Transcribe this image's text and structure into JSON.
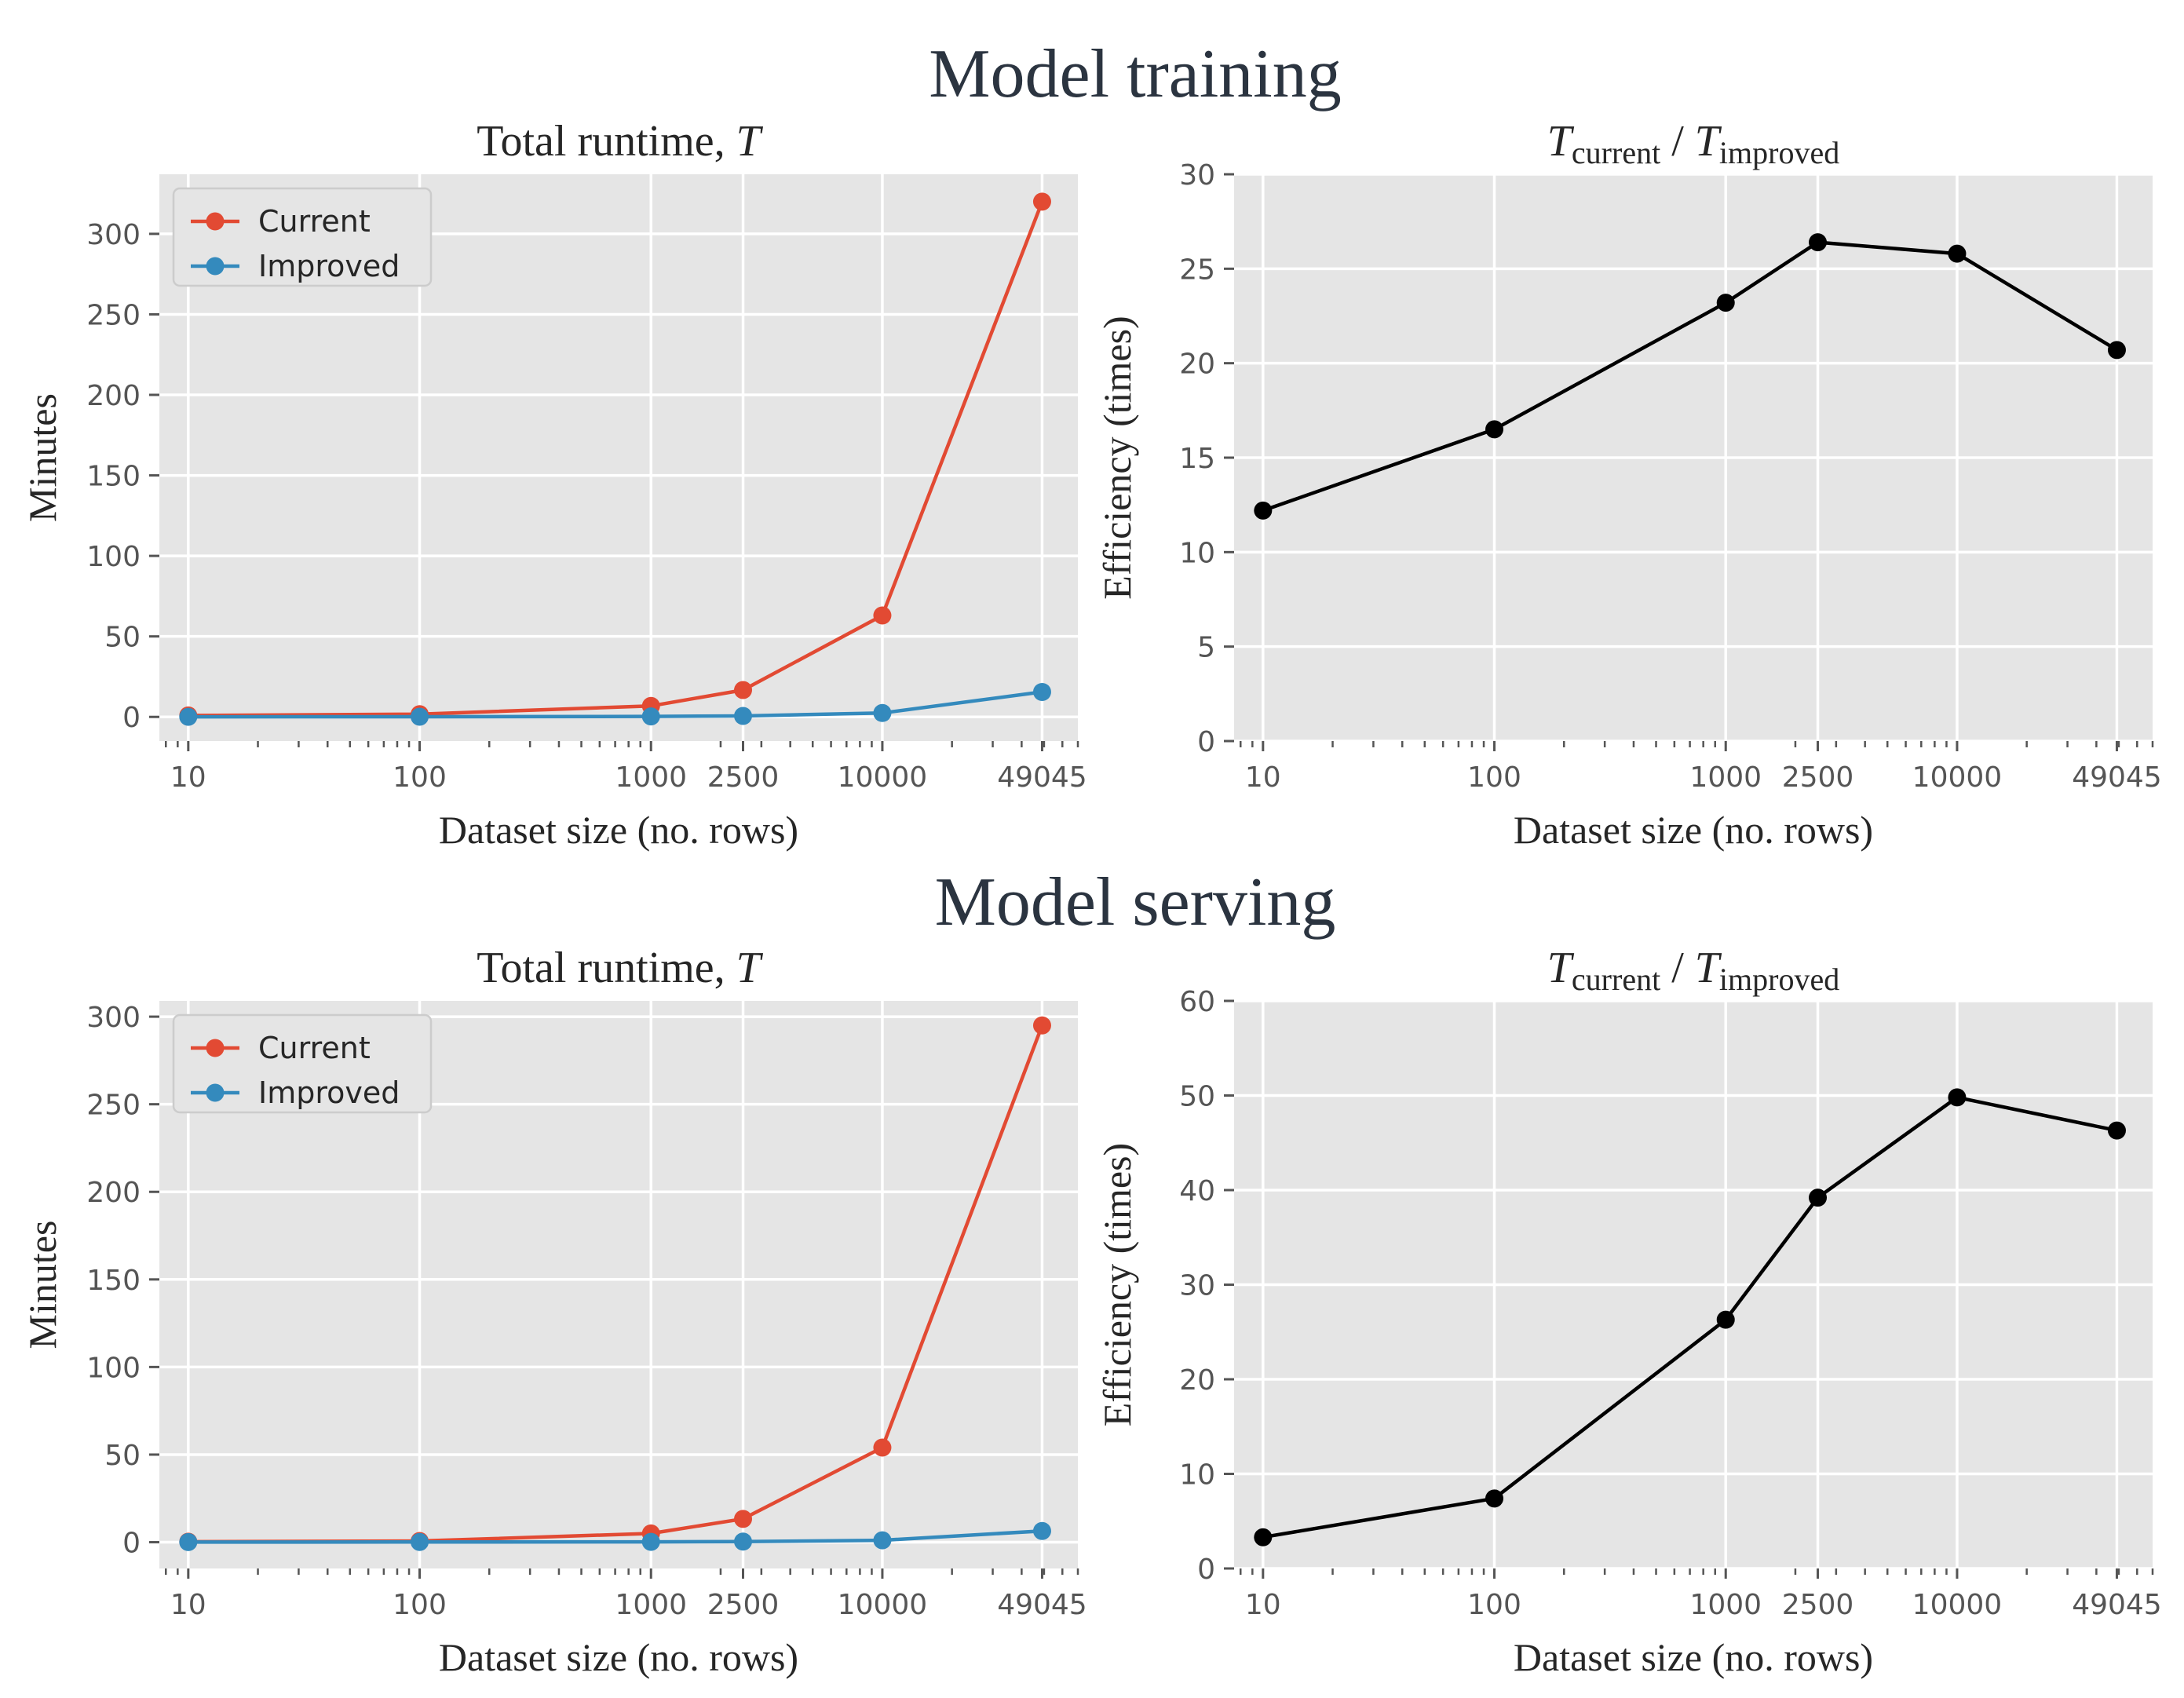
{
  "figure": {
    "sections": [
      {
        "title": "Model training"
      },
      {
        "title": "Model serving"
      }
    ]
  },
  "colors": {
    "current": "#E24A33",
    "improved": "#348ABD",
    "ratio": "#000000",
    "axes_bg": "#E5E5E5",
    "grid": "#FFFFFF"
  },
  "chart_data": [
    {
      "type": "line",
      "section": "Model training",
      "title_prefix": "Total runtime, ",
      "title_var": "T",
      "xlabel": "Dataset size (no. rows)",
      "ylabel": "Minutes",
      "xscale": "log",
      "xticks": [
        10,
        100,
        1000,
        2500,
        10000,
        49045
      ],
      "xtick_labels": [
        "10",
        "100",
        "1000",
        "2500",
        "10000",
        "49045"
      ],
      "x": [
        10,
        100,
        1000,
        2500,
        10000,
        49045
      ],
      "series": [
        {
          "name": "Current",
          "color_key": "current",
          "values": [
            0.9,
            1.7,
            6.8,
            16.7,
            63,
            320
          ]
        },
        {
          "name": "Improved",
          "color_key": "improved",
          "values": [
            0.07,
            0.1,
            0.3,
            0.6,
            2.4,
            15.5
          ]
        }
      ],
      "ylim": [
        -15,
        337
      ],
      "yticks": [
        0,
        50,
        100,
        150,
        200,
        250,
        300
      ],
      "ytick_labels": [
        "0",
        "50",
        "100",
        "150",
        "200",
        "250",
        "300"
      ],
      "legend": "upper-left",
      "grid": true
    },
    {
      "type": "line",
      "section": "Model training",
      "title_ratio": {
        "num_var": "T",
        "num_sub": "current",
        "sep": " / ",
        "den_var": "T",
        "den_sub": "improved"
      },
      "xlabel": "Dataset size (no. rows)",
      "ylabel": "Efficiency (times)",
      "xscale": "log",
      "xticks": [
        10,
        100,
        1000,
        2500,
        10000,
        49045
      ],
      "xtick_labels": [
        "10",
        "100",
        "1000",
        "2500",
        "10000",
        "49045"
      ],
      "x": [
        10,
        100,
        1000,
        2500,
        10000,
        49045
      ],
      "series": [
        {
          "color_key": "ratio",
          "values": [
            12.2,
            16.5,
            23.2,
            26.4,
            25.8,
            20.7
          ]
        }
      ],
      "ylim": [
        0,
        30
      ],
      "yticks": [
        0,
        5,
        10,
        15,
        20,
        25,
        30
      ],
      "ytick_labels": [
        "0",
        "5",
        "10",
        "15",
        "20",
        "25",
        "30"
      ],
      "grid": true
    },
    {
      "type": "line",
      "section": "Model serving",
      "title_prefix": "Total runtime, ",
      "title_var": "T",
      "xlabel": "Dataset size (no. rows)",
      "ylabel": "Minutes",
      "xscale": "log",
      "xticks": [
        10,
        100,
        1000,
        2500,
        10000,
        49045
      ],
      "xtick_labels": [
        "10",
        "100",
        "1000",
        "2500",
        "10000",
        "49045"
      ],
      "x": [
        10,
        100,
        1000,
        2500,
        10000,
        49045
      ],
      "series": [
        {
          "name": "Current",
          "color_key": "current",
          "values": [
            0.3,
            0.7,
            5,
            13.3,
            54,
            295
          ]
        },
        {
          "name": "Improved",
          "color_key": "improved",
          "values": [
            0.05,
            0.1,
            0.2,
            0.35,
            1.1,
            6.4
          ]
        }
      ],
      "ylim": [
        -15,
        309
      ],
      "yticks": [
        0,
        50,
        100,
        150,
        200,
        250,
        300
      ],
      "ytick_labels": [
        "0",
        "50",
        "100",
        "150",
        "200",
        "250",
        "300"
      ],
      "legend": "upper-left",
      "grid": true
    },
    {
      "type": "line",
      "section": "Model serving",
      "title_ratio": {
        "num_var": "T",
        "num_sub": "current",
        "sep": " / ",
        "den_var": "T",
        "den_sub": "improved"
      },
      "xlabel": "Dataset size (no. rows)",
      "ylabel": "Efficiency (times)",
      "xscale": "log",
      "xticks": [
        10,
        100,
        1000,
        2500,
        10000,
        49045
      ],
      "xtick_labels": [
        "10",
        "100",
        "1000",
        "2500",
        "10000",
        "49045"
      ],
      "x": [
        10,
        100,
        1000,
        2500,
        10000,
        49045
      ],
      "series": [
        {
          "color_key": "ratio",
          "values": [
            3.3,
            7.4,
            26.3,
            39.2,
            49.8,
            46.3
          ]
        }
      ],
      "ylim": [
        0,
        60
      ],
      "yticks": [
        0,
        10,
        20,
        30,
        40,
        50,
        60
      ],
      "ytick_labels": [
        "0",
        "10",
        "20",
        "30",
        "40",
        "50",
        "60"
      ],
      "grid": true
    }
  ]
}
